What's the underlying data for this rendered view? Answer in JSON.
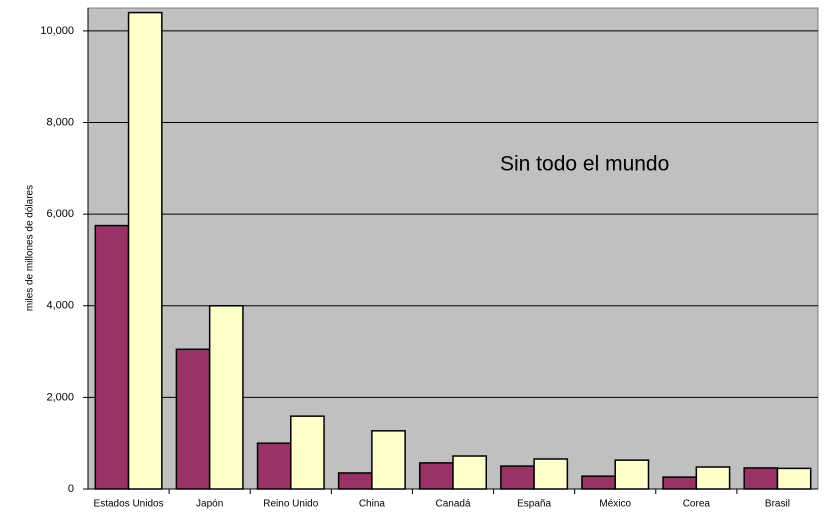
{
  "chart_data": {
    "type": "bar",
    "y_axis_label": "miles de millones de dólares",
    "annotation": "Sin todo el mundo",
    "categories": [
      "Estados Unidos",
      "Japón",
      "Reino Unido",
      "China",
      "Canadá",
      "España",
      "México",
      "Corea",
      "Brasil"
    ],
    "series": [
      {
        "color": "#993366",
        "values": [
          5750,
          3050,
          1000,
          350,
          570,
          500,
          280,
          260,
          460
        ]
      },
      {
        "color": "#ffffcc",
        "values": [
          10400,
          4000,
          1590,
          1270,
          720,
          655,
          630,
          480,
          450
        ]
      }
    ],
    "ylim": [
      0,
      10500
    ],
    "yticks": [
      0,
      {
        "value": 2000,
        "label": "2,000"
      },
      {
        "value": 4000,
        "label": "4,000"
      },
      {
        "value": 6000,
        "label": "6,000"
      },
      {
        "value": 8000,
        "label": "8,000"
      },
      {
        "value": 10000,
        "label": "10,000"
      }
    ],
    "grid": true,
    "plot_background": "#c0c0c0"
  }
}
